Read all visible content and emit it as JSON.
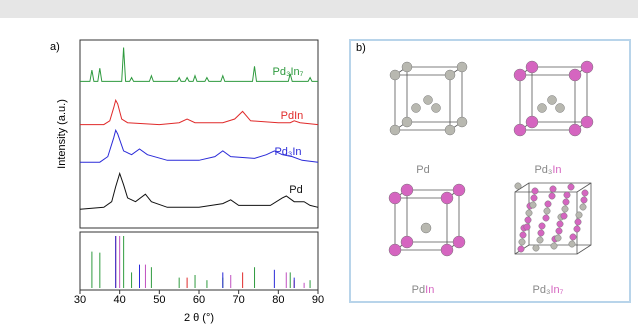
{
  "chart_data": [
    {
      "type": "line",
      "panel_label": "a)",
      "y_label": "Intensity (a.u.)",
      "ylim": [
        0,
        100
      ],
      "xlim": [
        30,
        90
      ],
      "series": [
        {
          "name": "Pd₃In₇",
          "color": "#2e9a3e",
          "x": [
            30,
            32.5,
            33,
            33.5,
            34.5,
            35,
            35.5,
            40.5,
            41,
            41.5,
            42.5,
            43,
            43.5,
            47.5,
            48,
            48.5,
            54.5,
            55,
            55.5,
            56.5,
            57,
            57.5,
            58.5,
            59,
            59.5,
            61.5,
            62,
            62.5,
            65.5,
            66,
            66.5,
            73.5,
            74,
            74.5,
            82.5,
            83,
            83.5,
            87.5,
            88,
            88.5,
            90
          ],
          "values": [
            78,
            78,
            84,
            78,
            78,
            85,
            78,
            78,
            96,
            78,
            78,
            80,
            78,
            78,
            81,
            78,
            78,
            80,
            78,
            78,
            80,
            78,
            78,
            81,
            78,
            78,
            80,
            78,
            78,
            81,
            78,
            78,
            86,
            78,
            78,
            82,
            78,
            78,
            80,
            78,
            78
          ]
        },
        {
          "name": "PdIn",
          "color": "#e02a2a",
          "x": [
            30,
            36,
            37.5,
            38.5,
            39,
            39.5,
            40.5,
            42,
            50,
            55,
            57,
            59,
            66,
            69,
            71,
            73,
            80,
            83,
            84,
            85.5,
            90
          ],
          "values": [
            55,
            55,
            57,
            64,
            68,
            66,
            58,
            56,
            55,
            56,
            58,
            56,
            56,
            58,
            62,
            57,
            56,
            56,
            57,
            56,
            55
          ]
        },
        {
          "name": "Pd₃In",
          "color": "#2a2ad8",
          "x": [
            30,
            35,
            37,
            38.5,
            39,
            39.5,
            41,
            43,
            45,
            47,
            52,
            60,
            64,
            66,
            68,
            74,
            77,
            79,
            81,
            83.5,
            86,
            90
          ],
          "values": [
            35,
            35,
            38,
            48,
            52,
            50,
            41,
            39,
            42,
            39,
            36,
            36,
            38,
            41,
            38,
            37,
            39,
            41,
            39,
            38,
            36,
            35
          ]
        },
        {
          "name": "Pd",
          "color": "#111111",
          "x": [
            30,
            36,
            38,
            39,
            40,
            41,
            42,
            44,
            46.5,
            48,
            52,
            60,
            66,
            68,
            70,
            78,
            81,
            82,
            84,
            86.5,
            88,
            90
          ],
          "values": [
            10,
            11,
            14,
            22,
            29,
            23,
            16,
            14,
            18,
            14,
            11,
            11,
            13,
            15,
            12,
            12,
            16,
            17,
            14,
            14,
            12,
            11
          ]
        }
      ]
    },
    {
      "type": "stick",
      "x_label": "2 θ (°)",
      "xlim": [
        30,
        90
      ],
      "ylim": [
        0,
        100
      ],
      "xticks": [
        30,
        40,
        50,
        60,
        70,
        80,
        90
      ],
      "series": [
        {
          "color": "#2e9a3e",
          "x": [
            33,
            35,
            41,
            43,
            48,
            55,
            59,
            62,
            66,
            74,
            83,
            88
          ],
          "values": [
            70,
            68,
            100,
            30,
            40,
            20,
            25,
            15,
            20,
            40,
            30,
            15
          ]
        },
        {
          "color": "#e02a2a",
          "x": [
            39,
            57,
            71,
            84
          ],
          "values": [
            100,
            20,
            30,
            15
          ]
        },
        {
          "color": "#2a2ad8",
          "x": [
            39,
            45,
            66,
            79,
            84
          ],
          "values": [
            100,
            45,
            30,
            35,
            20
          ]
        },
        {
          "color": "#c050c0",
          "x": [
            40,
            46.5,
            68,
            82,
            86.5
          ],
          "values": [
            100,
            45,
            25,
            30,
            10
          ]
        }
      ]
    }
  ],
  "panel_b": {
    "panel_label": "b)",
    "structures": [
      {
        "label": [
          "Pd"
        ]
      },
      {
        "label": [
          "Pd₃",
          "In"
        ]
      },
      {
        "label": [
          "Pd",
          "In"
        ]
      },
      {
        "label": [
          "Pd₃",
          "In₇"
        ]
      }
    ]
  }
}
